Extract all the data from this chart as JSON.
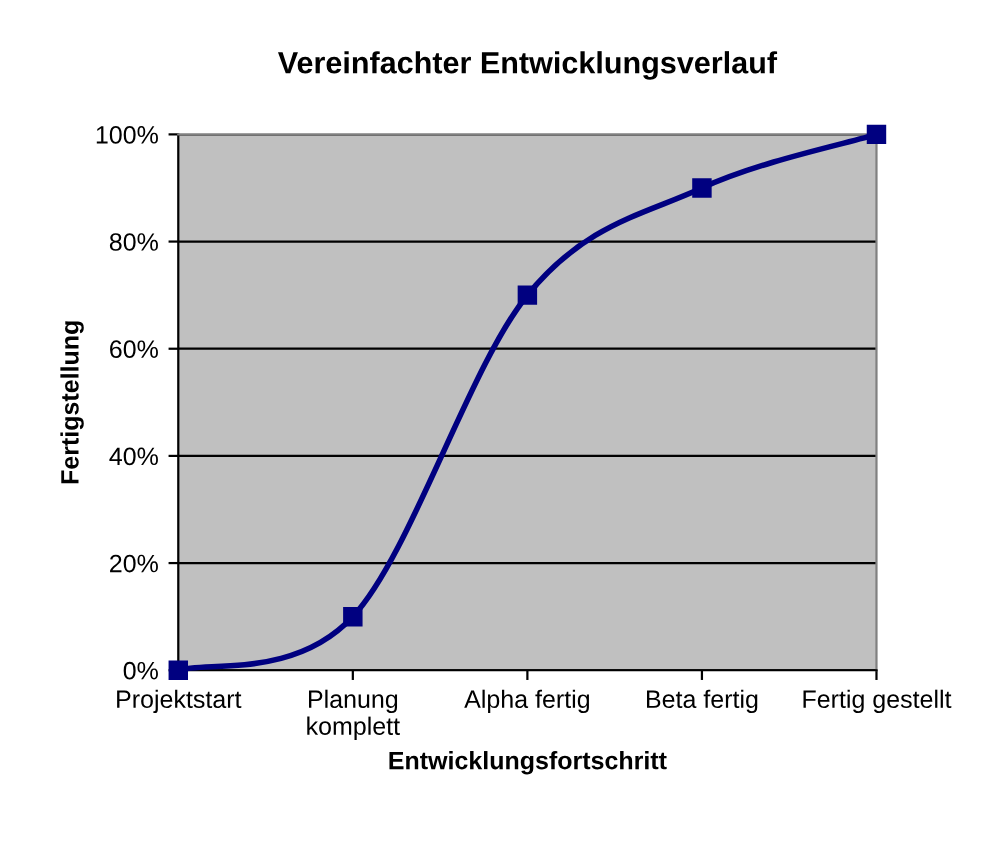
{
  "chart_data": {
    "type": "line",
    "title": "Vereinfachter Entwicklungsverlauf",
    "xlabel": "Entwicklungsfortschritt",
    "ylabel": "Fertigstellung",
    "categories": [
      "Projektstart",
      "Planung\nkomplett",
      "Alpha fertig",
      "Beta fertig",
      "Fertig gestellt"
    ],
    "series": [
      {
        "color": "#000080",
        "values": [
          0,
          10,
          70,
          90,
          100
        ]
      }
    ],
    "ylim": [
      0,
      100
    ],
    "yticks": [
      {
        "value": 0,
        "label": "0%"
      },
      {
        "value": 20,
        "label": "20%"
      },
      {
        "value": 40,
        "label": "40%"
      },
      {
        "value": 60,
        "label": "60%"
      },
      {
        "value": 80,
        "label": "80%"
      },
      {
        "value": 100,
        "label": "100%"
      }
    ],
    "grid": "y",
    "marker": "square",
    "line_style": "solid"
  }
}
